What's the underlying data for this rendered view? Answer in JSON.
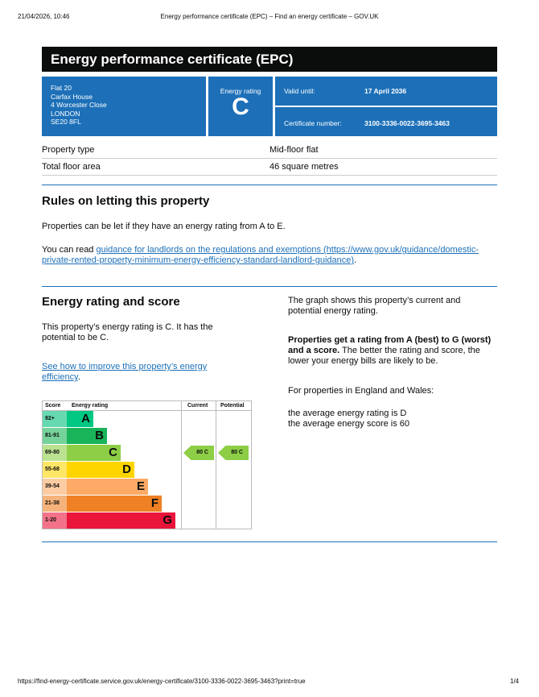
{
  "browser": {
    "datetime": "21/04/2026, 10:46",
    "title": "Energy performance certificate (EPC) – Find an energy certificate – GOV.UK",
    "url": "https://find-energy-certificate.service.gov.uk/energy-certificate/3100-3336-0022-3695-3463?print=true",
    "page": "1/4"
  },
  "header": {
    "title": "Energy performance certificate (EPC)"
  },
  "address": [
    "Flat 20",
    "Carfax House",
    "4 Worcester Close",
    "LONDON",
    "SE20 8FL"
  ],
  "rating": {
    "label": "Energy rating",
    "value": "C"
  },
  "valid": {
    "label": "Valid until:",
    "value": "17 April 2036"
  },
  "certificate": {
    "label": "Certificate number:",
    "value": "3100-3336-0022-3695-3463"
  },
  "property": [
    {
      "label": "Property type",
      "value": "Mid-floor flat"
    },
    {
      "label": "Total floor area",
      "value": "46 square metres"
    }
  ],
  "letting": {
    "heading": "Rules on letting this property",
    "p1": "Properties can be let if they have an energy rating from A to E.",
    "p2_prefix": "You can read ",
    "link": "guidance for landlords on the regulations and exemptions (https://www.gov.uk/guidance/domestic-private-rented-property-minimum-energy-efficiency-standard-landlord-guidance)",
    "p2_suffix": "."
  },
  "score_section": {
    "heading": "Energy rating and score",
    "p1": "This property’s energy rating is C. It has the potential to be C.",
    "link": "See how to improve this property’s energy efficiency",
    "link_suffix": ".",
    "right_p1": "The graph shows this property’s current and potential energy rating.",
    "right_bold": "Properties get a rating from A (best) to G (worst) and a score.",
    "right_p2": " The better the rating and score, the lower your energy bills are likely to be.",
    "right_p3": "For properties in England and Wales:",
    "avg_rating": "the average energy rating is D",
    "avg_score": "the average energy score is 60"
  },
  "chart_data": {
    "type": "table",
    "headers": [
      "Score",
      "Energy rating",
      "Current",
      "Potential"
    ],
    "bands": [
      {
        "score": "92+",
        "letter": "A",
        "color": "#00c781",
        "light": "#66d9b0"
      },
      {
        "score": "81-91",
        "letter": "B",
        "color": "#19b459",
        "light": "#75d29b"
      },
      {
        "score": "69-80",
        "letter": "C",
        "color": "#8dce46",
        "light": "#bbe290"
      },
      {
        "score": "55-68",
        "letter": "D",
        "color": "#ffd500",
        "light": "#ffe666"
      },
      {
        "score": "39-54",
        "letter": "E",
        "color": "#fcaa65",
        "light": "#fdcca3"
      },
      {
        "score": "21-38",
        "letter": "F",
        "color": "#ef8023",
        "light": "#f5b37b"
      },
      {
        "score": "1-20",
        "letter": "G",
        "color": "#e9153b",
        "light": "#f27389"
      }
    ],
    "current": {
      "score": 80,
      "rating": "C",
      "label": "80  C"
    },
    "potential": {
      "score": 80,
      "rating": "C",
      "label": "80  C"
    }
  }
}
